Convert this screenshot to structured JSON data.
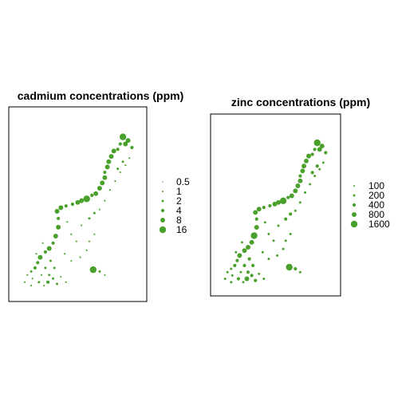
{
  "chart_data": [
    {
      "type": "scatter",
      "title": "cadmium concentrations (ppm)",
      "legend": {
        "placement": "right",
        "entries": [
          "0.5",
          "1",
          "2",
          "4",
          "8",
          "16"
        ],
        "values": [
          0.5,
          1,
          2,
          4,
          8,
          16
        ]
      },
      "color": "#4aa02c",
      "xlim": [
        0,
        1
      ],
      "ylim": [
        0,
        1
      ],
      "points": [
        {
          "x": 0.84,
          "y": 0.88,
          "v": 16
        },
        {
          "x": 0.88,
          "y": 0.86,
          "v": 8
        },
        {
          "x": 0.91,
          "y": 0.82,
          "v": 4
        },
        {
          "x": 0.86,
          "y": 0.84,
          "v": 8
        },
        {
          "x": 0.82,
          "y": 0.84,
          "v": 4
        },
        {
          "x": 0.8,
          "y": 0.81,
          "v": 4
        },
        {
          "x": 0.77,
          "y": 0.8,
          "v": 8
        },
        {
          "x": 0.75,
          "y": 0.77,
          "v": 8
        },
        {
          "x": 0.73,
          "y": 0.74,
          "v": 8
        },
        {
          "x": 0.72,
          "y": 0.71,
          "v": 8
        },
        {
          "x": 0.7,
          "y": 0.68,
          "v": 4
        },
        {
          "x": 0.7,
          "y": 0.65,
          "v": 8
        },
        {
          "x": 0.68,
          "y": 0.62,
          "v": 8
        },
        {
          "x": 0.66,
          "y": 0.59,
          "v": 8
        },
        {
          "x": 0.63,
          "y": 0.56,
          "v": 8
        },
        {
          "x": 0.6,
          "y": 0.55,
          "v": 4
        },
        {
          "x": 0.56,
          "y": 0.53,
          "v": 16
        },
        {
          "x": 0.52,
          "y": 0.52,
          "v": 8
        },
        {
          "x": 0.49,
          "y": 0.51,
          "v": 8
        },
        {
          "x": 0.45,
          "y": 0.5,
          "v": 4
        },
        {
          "x": 0.4,
          "y": 0.49,
          "v": 4
        },
        {
          "x": 0.36,
          "y": 0.48,
          "v": 8
        },
        {
          "x": 0.33,
          "y": 0.46,
          "v": 8
        },
        {
          "x": 0.34,
          "y": 0.42,
          "v": 4
        },
        {
          "x": 0.34,
          "y": 0.37,
          "v": 8
        },
        {
          "x": 0.32,
          "y": 0.32,
          "v": 8
        },
        {
          "x": 0.3,
          "y": 0.28,
          "v": 4
        },
        {
          "x": 0.27,
          "y": 0.25,
          "v": 8
        },
        {
          "x": 0.24,
          "y": 0.23,
          "v": 4
        },
        {
          "x": 0.2,
          "y": 0.2,
          "v": 8
        },
        {
          "x": 0.18,
          "y": 0.17,
          "v": 4
        },
        {
          "x": 0.16,
          "y": 0.14,
          "v": 4
        },
        {
          "x": 0.13,
          "y": 0.12,
          "v": 2
        },
        {
          "x": 0.1,
          "y": 0.1,
          "v": 1
        },
        {
          "x": 0.14,
          "y": 0.08,
          "v": 1
        },
        {
          "x": 0.19,
          "y": 0.06,
          "v": 2
        },
        {
          "x": 0.23,
          "y": 0.04,
          "v": 1
        },
        {
          "x": 0.27,
          "y": 0.1,
          "v": 2
        },
        {
          "x": 0.31,
          "y": 0.14,
          "v": 2
        },
        {
          "x": 0.36,
          "y": 0.09,
          "v": 1
        },
        {
          "x": 0.4,
          "y": 0.06,
          "v": 1
        },
        {
          "x": 0.33,
          "y": 0.05,
          "v": 2
        },
        {
          "x": 0.39,
          "y": 0.22,
          "v": 1
        },
        {
          "x": 0.44,
          "y": 0.18,
          "v": 1
        },
        {
          "x": 0.51,
          "y": 0.2,
          "v": 1
        },
        {
          "x": 0.56,
          "y": 0.24,
          "v": 1
        },
        {
          "x": 0.61,
          "y": 0.13,
          "v": 16
        },
        {
          "x": 0.66,
          "y": 0.12,
          "v": 2
        },
        {
          "x": 0.7,
          "y": 0.1,
          "v": 1
        },
        {
          "x": 0.48,
          "y": 0.29,
          "v": 1
        },
        {
          "x": 0.44,
          "y": 0.33,
          "v": 1
        },
        {
          "x": 0.52,
          "y": 0.38,
          "v": 1
        },
        {
          "x": 0.58,
          "y": 0.42,
          "v": 2
        },
        {
          "x": 0.62,
          "y": 0.45,
          "v": 2
        },
        {
          "x": 0.66,
          "y": 0.47,
          "v": 1
        },
        {
          "x": 0.7,
          "y": 0.52,
          "v": 1
        },
        {
          "x": 0.74,
          "y": 0.58,
          "v": 1
        },
        {
          "x": 0.78,
          "y": 0.63,
          "v": 1
        },
        {
          "x": 0.82,
          "y": 0.68,
          "v": 1
        },
        {
          "x": 0.86,
          "y": 0.72,
          "v": 1
        },
        {
          "x": 0.89,
          "y": 0.76,
          "v": 1
        },
        {
          "x": 0.84,
          "y": 0.74,
          "v": 2
        },
        {
          "x": 0.8,
          "y": 0.7,
          "v": 2
        },
        {
          "x": 0.62,
          "y": 0.33,
          "v": 1
        },
        {
          "x": 0.58,
          "y": 0.29,
          "v": 1
        },
        {
          "x": 0.41,
          "y": 0.4,
          "v": 1
        },
        {
          "x": 0.28,
          "y": 0.18,
          "v": 2
        },
        {
          "x": 0.24,
          "y": 0.14,
          "v": 2
        },
        {
          "x": 0.21,
          "y": 0.1,
          "v": 1
        },
        {
          "x": 0.17,
          "y": 0.22,
          "v": 1
        },
        {
          "x": 0.22,
          "y": 0.28,
          "v": 1
        },
        {
          "x": 0.26,
          "y": 0.06,
          "v": 4
        },
        {
          "x": 0.3,
          "y": 0.08,
          "v": 2
        },
        {
          "x": 0.13,
          "y": 0.04,
          "v": 1
        },
        {
          "x": 0.08,
          "y": 0.06,
          "v": 1
        }
      ]
    },
    {
      "type": "scatter",
      "title": "zinc concentrations (ppm)",
      "legend": {
        "placement": "right",
        "entries": [
          "100",
          "200",
          "400",
          "800",
          "1600"
        ],
        "values": [
          100,
          200,
          400,
          800,
          1600
        ]
      },
      "color": "#4aa02c",
      "xlim": [
        0,
        1
      ],
      "ylim": [
        0,
        1
      ],
      "points": [
        {
          "x": 0.84,
          "y": 0.88,
          "v": 1600
        },
        {
          "x": 0.88,
          "y": 0.86,
          "v": 800
        },
        {
          "x": 0.91,
          "y": 0.82,
          "v": 400
        },
        {
          "x": 0.86,
          "y": 0.84,
          "v": 800
        },
        {
          "x": 0.82,
          "y": 0.84,
          "v": 400
        },
        {
          "x": 0.8,
          "y": 0.81,
          "v": 400
        },
        {
          "x": 0.77,
          "y": 0.8,
          "v": 800
        },
        {
          "x": 0.75,
          "y": 0.77,
          "v": 800
        },
        {
          "x": 0.73,
          "y": 0.74,
          "v": 800
        },
        {
          "x": 0.72,
          "y": 0.71,
          "v": 800
        },
        {
          "x": 0.7,
          "y": 0.68,
          "v": 400
        },
        {
          "x": 0.7,
          "y": 0.65,
          "v": 800
        },
        {
          "x": 0.68,
          "y": 0.62,
          "v": 800
        },
        {
          "x": 0.66,
          "y": 0.59,
          "v": 800
        },
        {
          "x": 0.63,
          "y": 0.56,
          "v": 800
        },
        {
          "x": 0.6,
          "y": 0.55,
          "v": 400
        },
        {
          "x": 0.56,
          "y": 0.53,
          "v": 1600
        },
        {
          "x": 0.52,
          "y": 0.52,
          "v": 800
        },
        {
          "x": 0.49,
          "y": 0.51,
          "v": 800
        },
        {
          "x": 0.45,
          "y": 0.5,
          "v": 400
        },
        {
          "x": 0.4,
          "y": 0.49,
          "v": 400
        },
        {
          "x": 0.36,
          "y": 0.48,
          "v": 800
        },
        {
          "x": 0.33,
          "y": 0.46,
          "v": 800
        },
        {
          "x": 0.34,
          "y": 0.42,
          "v": 400
        },
        {
          "x": 0.34,
          "y": 0.37,
          "v": 800
        },
        {
          "x": 0.32,
          "y": 0.32,
          "v": 1600
        },
        {
          "x": 0.3,
          "y": 0.28,
          "v": 800
        },
        {
          "x": 0.27,
          "y": 0.25,
          "v": 800
        },
        {
          "x": 0.24,
          "y": 0.23,
          "v": 800
        },
        {
          "x": 0.2,
          "y": 0.2,
          "v": 800
        },
        {
          "x": 0.18,
          "y": 0.17,
          "v": 400
        },
        {
          "x": 0.16,
          "y": 0.14,
          "v": 400
        },
        {
          "x": 0.13,
          "y": 0.12,
          "v": 200
        },
        {
          "x": 0.1,
          "y": 0.1,
          "v": 200
        },
        {
          "x": 0.14,
          "y": 0.08,
          "v": 200
        },
        {
          "x": 0.19,
          "y": 0.06,
          "v": 400
        },
        {
          "x": 0.23,
          "y": 0.04,
          "v": 200
        },
        {
          "x": 0.27,
          "y": 0.1,
          "v": 400
        },
        {
          "x": 0.31,
          "y": 0.14,
          "v": 400
        },
        {
          "x": 0.36,
          "y": 0.09,
          "v": 200
        },
        {
          "x": 0.4,
          "y": 0.06,
          "v": 200
        },
        {
          "x": 0.33,
          "y": 0.05,
          "v": 400
        },
        {
          "x": 0.39,
          "y": 0.22,
          "v": 200
        },
        {
          "x": 0.44,
          "y": 0.18,
          "v": 200
        },
        {
          "x": 0.51,
          "y": 0.2,
          "v": 200
        },
        {
          "x": 0.56,
          "y": 0.24,
          "v": 200
        },
        {
          "x": 0.61,
          "y": 0.13,
          "v": 1600
        },
        {
          "x": 0.66,
          "y": 0.12,
          "v": 400
        },
        {
          "x": 0.7,
          "y": 0.1,
          "v": 200
        },
        {
          "x": 0.48,
          "y": 0.29,
          "v": 200
        },
        {
          "x": 0.44,
          "y": 0.33,
          "v": 200
        },
        {
          "x": 0.52,
          "y": 0.38,
          "v": 200
        },
        {
          "x": 0.58,
          "y": 0.42,
          "v": 400
        },
        {
          "x": 0.62,
          "y": 0.45,
          "v": 400
        },
        {
          "x": 0.66,
          "y": 0.47,
          "v": 200
        },
        {
          "x": 0.7,
          "y": 0.52,
          "v": 200
        },
        {
          "x": 0.74,
          "y": 0.58,
          "v": 200
        },
        {
          "x": 0.78,
          "y": 0.63,
          "v": 200
        },
        {
          "x": 0.82,
          "y": 0.68,
          "v": 200
        },
        {
          "x": 0.86,
          "y": 0.72,
          "v": 200
        },
        {
          "x": 0.89,
          "y": 0.76,
          "v": 200
        },
        {
          "x": 0.84,
          "y": 0.74,
          "v": 400
        },
        {
          "x": 0.8,
          "y": 0.7,
          "v": 400
        },
        {
          "x": 0.62,
          "y": 0.33,
          "v": 200
        },
        {
          "x": 0.58,
          "y": 0.29,
          "v": 200
        },
        {
          "x": 0.41,
          "y": 0.4,
          "v": 200
        },
        {
          "x": 0.28,
          "y": 0.18,
          "v": 400
        },
        {
          "x": 0.24,
          "y": 0.14,
          "v": 400
        },
        {
          "x": 0.21,
          "y": 0.1,
          "v": 200
        },
        {
          "x": 0.17,
          "y": 0.22,
          "v": 200
        },
        {
          "x": 0.22,
          "y": 0.28,
          "v": 200
        },
        {
          "x": 0.26,
          "y": 0.06,
          "v": 800
        },
        {
          "x": 0.3,
          "y": 0.08,
          "v": 400
        },
        {
          "x": 0.13,
          "y": 0.04,
          "v": 200
        },
        {
          "x": 0.08,
          "y": 0.06,
          "v": 200
        }
      ]
    }
  ]
}
